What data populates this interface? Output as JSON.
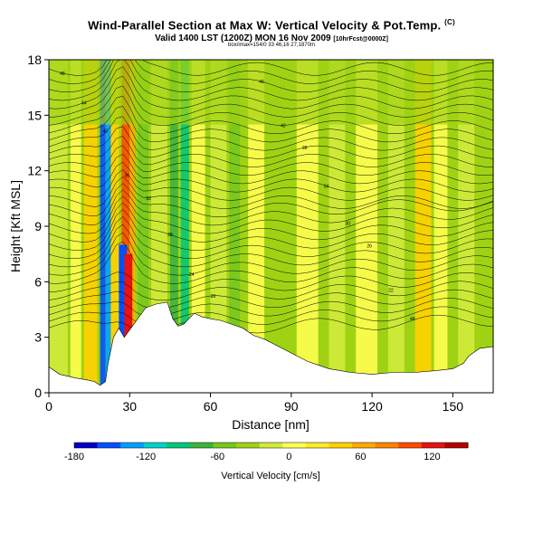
{
  "header": {
    "title": "Wind-Parallel Section at Max W: Vertical Velocity & Pot.Temp.",
    "copyright": "(C)",
    "valid": "Valid 1400 LST (1200Z) MON 16 Nov 2009",
    "valid_small": "[10hrFcst@0000Z]",
    "sub": "box/imax=154/0 33 46,16 27,1870m"
  },
  "chart_data": {
    "type": "heatmap",
    "xlabel": "Distance [nm]",
    "ylabel": "Height [Kft MSL]",
    "xlim": [
      0,
      165
    ],
    "ylim": [
      0,
      18
    ],
    "xticks": [
      0,
      30,
      60,
      90,
      120,
      150
    ],
    "yticks": [
      0,
      3,
      6,
      9,
      12,
      15,
      18
    ],
    "colorbar": {
      "label": "Vertical Velocity [cm/s]",
      "range": [
        -180,
        150
      ],
      "tick_values": [
        -180,
        -120,
        -60,
        0,
        60,
        120
      ],
      "colors": [
        "#0000c8",
        "#0050ff",
        "#00a0ff",
        "#00d2c8",
        "#00c87a",
        "#3cb43c",
        "#78c81e",
        "#a0d214",
        "#d2eb3c",
        "#ffff50",
        "#ffeb28",
        "#ffd200",
        "#ffaa00",
        "#ff8200",
        "#ff4b00",
        "#e61414",
        "#b40000"
      ]
    },
    "terrain_kft": [
      [
        0,
        1.4
      ],
      [
        4,
        1.0
      ],
      [
        10,
        0.8
      ],
      [
        14,
        0.7
      ],
      [
        17,
        0.6
      ],
      [
        19,
        0.4
      ],
      [
        21,
        0.6
      ],
      [
        22,
        1.6
      ],
      [
        24,
        3.0
      ],
      [
        26,
        3.5
      ],
      [
        28,
        3.0
      ],
      [
        31,
        3.6
      ],
      [
        34,
        4.2
      ],
      [
        36,
        4.6
      ],
      [
        40,
        4.8
      ],
      [
        44,
        4.9
      ],
      [
        46,
        4.0
      ],
      [
        48,
        3.6
      ],
      [
        50,
        3.7
      ],
      [
        52,
        4.0
      ],
      [
        54,
        4.3
      ],
      [
        57,
        4.1
      ],
      [
        60,
        4.0
      ],
      [
        64,
        3.9
      ],
      [
        68,
        3.7
      ],
      [
        72,
        3.5
      ],
      [
        76,
        3.1
      ],
      [
        80,
        2.9
      ],
      [
        84,
        2.6
      ],
      [
        88,
        2.3
      ],
      [
        92,
        2.0
      ],
      [
        96,
        1.7
      ],
      [
        100,
        1.5
      ],
      [
        104,
        1.3
      ],
      [
        108,
        1.2
      ],
      [
        112,
        1.1
      ],
      [
        120,
        1.0
      ],
      [
        128,
        1.1
      ],
      [
        136,
        1.1
      ],
      [
        144,
        1.2
      ],
      [
        150,
        1.3
      ],
      [
        154,
        1.6
      ],
      [
        156,
        2.0
      ],
      [
        160,
        2.4
      ],
      [
        165,
        2.5
      ]
    ],
    "isentrope_labels": [
      "48",
      "46",
      "44",
      "42",
      "40",
      "38",
      "36",
      "34",
      "32",
      "30",
      "28",
      "26",
      "24",
      "22",
      "20"
    ]
  }
}
